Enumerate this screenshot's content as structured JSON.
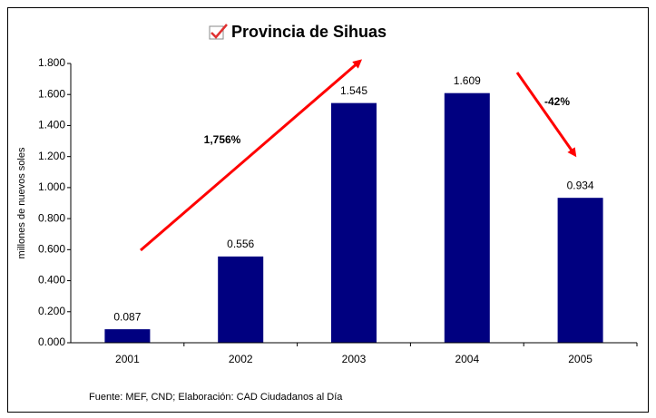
{
  "chart_data": {
    "type": "bar",
    "title": "Provincia de Sihuas",
    "y_label": "millones de nuevos soles",
    "categories": [
      "2001",
      "2002",
      "2003",
      "2004",
      "2005"
    ],
    "values": [
      0.087,
      0.556,
      1.545,
      1.609,
      0.934
    ],
    "color": "#000080",
    "ylim": [
      0,
      1.8
    ],
    "yticks": [
      {
        "value": 0,
        "label": "0.000"
      },
      {
        "value": 0.2,
        "label": "0.200"
      },
      {
        "value": 0.4,
        "label": "0.400"
      },
      {
        "value": 0.6,
        "label": "0.600"
      },
      {
        "value": 0.8,
        "label": "0.800"
      },
      {
        "value": 1,
        "label": "1.000"
      },
      {
        "value": 1.2,
        "label": "1.200"
      },
      {
        "value": 1.4,
        "label": "1.400"
      },
      {
        "value": 1.6,
        "label": "1.600"
      },
      {
        "value": 1.8,
        "label": "1.800"
      }
    ],
    "annotations": [
      "1,756%",
      "-42%"
    ],
    "source": "Fuente: MEF, CND; Elaboración: CAD Ciudadanos al Día"
  }
}
